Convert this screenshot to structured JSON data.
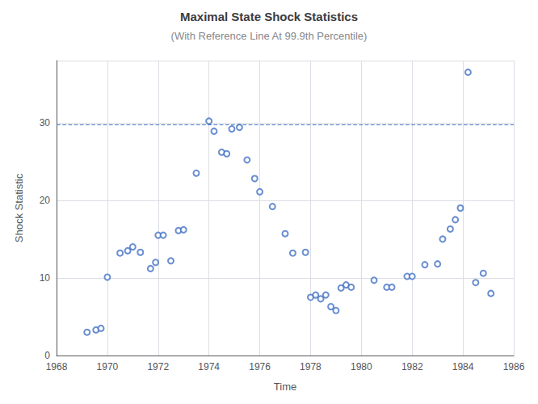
{
  "chart_data": {
    "type": "scatter",
    "title": "Maximal State Shock Statistics",
    "subtitle": "(With Reference Line At 99.9th Percentile)",
    "xlabel": "Time",
    "ylabel": "Shock Statistic",
    "x": [
      1969.2,
      1969.55,
      1969.75,
      1970.0,
      1970.5,
      1970.8,
      1971.0,
      1971.3,
      1971.7,
      1971.9,
      1972.0,
      1972.2,
      1972.5,
      1972.8,
      1973.0,
      1973.5,
      1974.0,
      1974.2,
      1974.5,
      1974.7,
      1974.9,
      1975.2,
      1975.5,
      1975.8,
      1976.0,
      1976.5,
      1977.0,
      1977.3,
      1977.8,
      1978.0,
      1978.2,
      1978.4,
      1978.6,
      1978.8,
      1979.0,
      1979.2,
      1979.4,
      1979.6,
      1980.5,
      1981.0,
      1981.2,
      1981.8,
      1982.0,
      1982.5,
      1983.0,
      1983.2,
      1983.5,
      1983.7,
      1983.9,
      1984.2,
      1984.5,
      1984.8,
      1985.1
    ],
    "values": [
      3.0,
      3.3,
      3.5,
      10.1,
      13.2,
      13.5,
      14.0,
      13.3,
      11.2,
      12.0,
      15.5,
      15.5,
      12.2,
      16.1,
      16.2,
      23.5,
      30.2,
      28.9,
      26.2,
      26.0,
      29.2,
      29.4,
      25.2,
      22.8,
      21.1,
      19.2,
      15.7,
      13.2,
      13.3,
      7.5,
      7.8,
      7.3,
      7.8,
      6.3,
      5.8,
      8.7,
      9.1,
      8.8,
      9.7,
      8.8,
      8.8,
      10.2,
      10.2,
      11.7,
      11.8,
      15.0,
      16.3,
      17.5,
      19.0,
      36.5,
      9.4,
      10.6,
      8.0
    ],
    "color": "#4472C4",
    "marker": "hollow_circle",
    "reference_line": {
      "value": 29.8,
      "color": "#4472C4",
      "line_style": "dashed"
    },
    "xlim": [
      1968,
      1986
    ],
    "ylim": [
      0,
      38
    ],
    "xticks": [
      1968,
      1970,
      1972,
      1974,
      1976,
      1978,
      1980,
      1982,
      1984,
      1986
    ],
    "yticks": [
      0,
      10,
      20,
      30
    ],
    "grid": true
  }
}
